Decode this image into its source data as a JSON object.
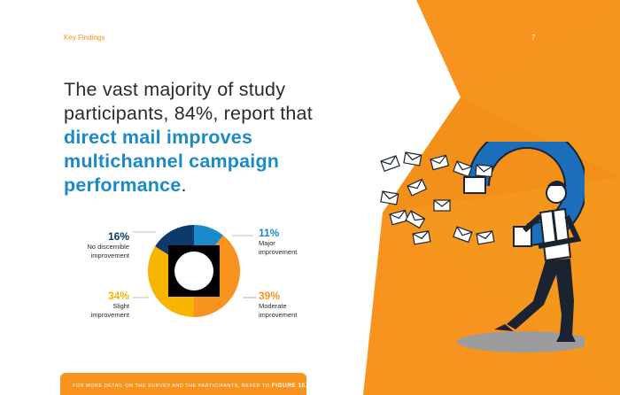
{
  "header": {
    "section": "Key Findings",
    "page_number": "7"
  },
  "headline": {
    "part1": "The vast majority of study participants, 84%, report that ",
    "emphasis": "direct mail improves multichannel campaign performance",
    "end": "."
  },
  "chart_data": {
    "type": "pie",
    "labels": [
      "Major improvement",
      "Moderate improvement",
      "Slight improvement",
      "No discernible improvement"
    ],
    "values": [
      11,
      39,
      34,
      16
    ],
    "colors": [
      "#1b8ac9",
      "#f7931e",
      "#f7b500",
      "#0e3a6b"
    ]
  },
  "callouts": {
    "major": {
      "pct": "11%",
      "line1": "Major",
      "line2": "improvement"
    },
    "moderate": {
      "pct": "39%",
      "line1": "Moderate",
      "line2": "improvement"
    },
    "slight": {
      "pct": "34%",
      "line1": "Slight",
      "line2": "improvement"
    },
    "none": {
      "pct": "16%",
      "line1": "No discernible",
      "line2": "improvement"
    }
  },
  "footer": {
    "text": "For more detail on the survey and the participants, refer to",
    "figure": "FIGURE 18."
  },
  "colors": {
    "orange": "#f7931e",
    "blue": "#1b8ac9",
    "navy": "#0e3a6b",
    "gold": "#f7b500"
  }
}
